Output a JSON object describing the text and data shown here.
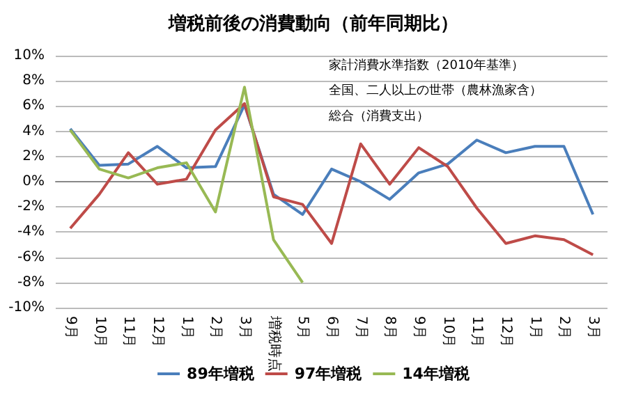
{
  "chart_data": {
    "type": "line",
    "title": "増税前後の消費動向（前年同期比）",
    "categories": [
      "9月",
      "10月",
      "11月",
      "12月",
      "1月",
      "2月",
      "3月",
      "増税時点",
      "5月",
      "6月",
      "7月",
      "8月",
      "9月",
      "10月",
      "11月",
      "12月",
      "1月",
      "2月",
      "3月"
    ],
    "series": [
      {
        "name": "89年増税",
        "color": "#4a7ebb",
        "values": [
          4.2,
          1.3,
          1.4,
          2.8,
          1.1,
          1.2,
          6.1,
          -1.0,
          -2.6,
          1.0,
          0.0,
          -1.4,
          0.7,
          1.4,
          3.3,
          2.3,
          2.8,
          2.8,
          -2.6
        ]
      },
      {
        "name": "97年増税",
        "color": "#be4b48",
        "values": [
          -3.7,
          -1.0,
          2.3,
          -0.2,
          0.2,
          4.1,
          6.2,
          -1.2,
          -1.8,
          -4.9,
          3.0,
          -0.2,
          2.7,
          1.2,
          -2.1,
          -4.9,
          -4.3,
          -4.6,
          -5.8
        ]
      },
      {
        "name": "14年増税",
        "color": "#98b954",
        "values": [
          4.1,
          1.0,
          0.3,
          1.1,
          1.5,
          -2.4,
          7.5,
          -4.6,
          -8.0,
          null,
          null,
          null,
          null,
          null,
          null,
          null,
          null,
          null,
          null
        ]
      }
    ],
    "ylim": [
      -10,
      10
    ],
    "yticks": [
      {
        "value": -10,
        "label": "-10%"
      },
      {
        "value": -8,
        "label": "-8%"
      },
      {
        "value": -6,
        "label": "-6%"
      },
      {
        "value": -4,
        "label": "-4%"
      },
      {
        "value": -2,
        "label": "-2%"
      },
      {
        "value": 0,
        "label": "0%"
      },
      {
        "value": 2,
        "label": "2%"
      },
      {
        "value": 4,
        "label": "4%"
      },
      {
        "value": 6,
        "label": "6%"
      },
      {
        "value": 8,
        "label": "8%"
      },
      {
        "value": 10,
        "label": "10%"
      }
    ],
    "annotations": [
      "家計消費水準指数（2010年基準）",
      "全国、二人以上の世帯（農林漁家含）",
      "総合（消費支出）"
    ],
    "grid": "y",
    "legend": "bottom",
    "marker": "none",
    "line_style": "solid"
  }
}
